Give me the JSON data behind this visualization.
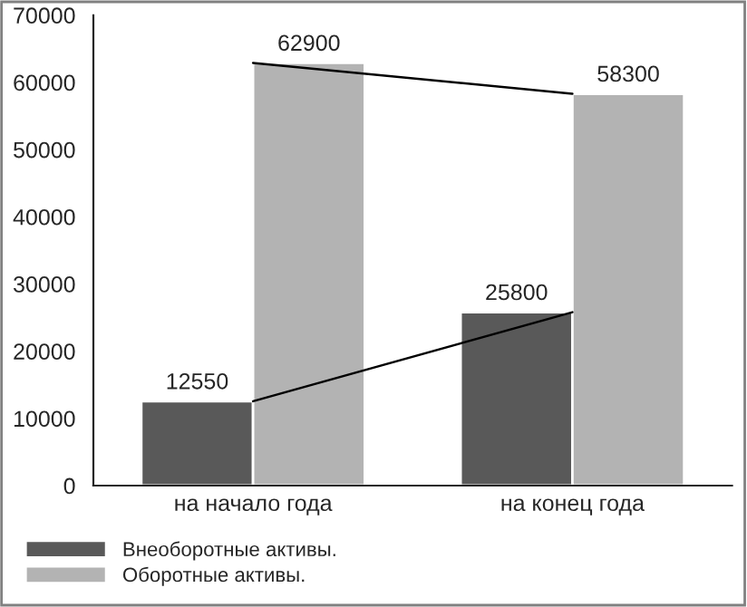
{
  "chart_data": {
    "type": "bar",
    "categories": [
      "на начало года",
      "на конец года"
    ],
    "series": [
      {
        "name": "Внеоборотные активы.",
        "color": "#595959",
        "values": [
          12550,
          25800
        ],
        "value_labels": [
          "12550",
          "25800"
        ]
      },
      {
        "name": "Оборотные активы.",
        "color": "#b3b3b3",
        "values": [
          62900,
          58300
        ],
        "value_labels": [
          "62900",
          "58300"
        ]
      },
      {
        "type": "line",
        "color": "#000000",
        "values": [
          12550,
          25800
        ]
      },
      {
        "type": "line",
        "color": "#000000",
        "values": [
          62900,
          58300
        ]
      }
    ],
    "ylim": [
      0,
      70000
    ],
    "yticks": [
      0,
      10000,
      20000,
      30000,
      40000,
      50000,
      60000,
      70000
    ],
    "grid": false,
    "legend": "bottom left"
  }
}
